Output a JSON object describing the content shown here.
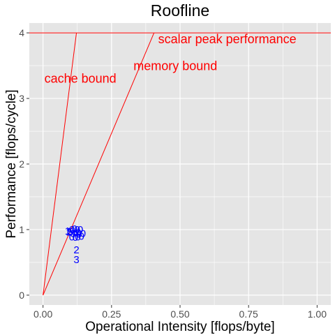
{
  "chart_data": {
    "type": "line",
    "title": "Roofline",
    "xlabel": "Operational Intensity [flops/byte]",
    "ylabel": "Performance [flops/cycle]",
    "xlim": [
      -0.05,
      1.05
    ],
    "ylim": [
      -0.15,
      4.15
    ],
    "x_ticks": [
      "0.00",
      "0.25",
      "0.50",
      "0.75",
      "1.00"
    ],
    "x_tick_values": [
      0,
      0.25,
      0.5,
      0.75,
      1.0
    ],
    "y_ticks": [
      "0",
      "1",
      "2",
      "3",
      "4"
    ],
    "y_tick_values": [
      0,
      1,
      2,
      3,
      4
    ],
    "grid": true,
    "colors": {
      "panel": "#e5e5e5",
      "grid": "#ffffff",
      "line": "#ff0000",
      "points": "#0000ff"
    },
    "series": [
      {
        "name": "scalar peak performance",
        "x": [
          -0.05,
          1.05
        ],
        "y": [
          4,
          4
        ]
      },
      {
        "name": "memory bound",
        "x": [
          0,
          0.405
        ],
        "y": [
          0,
          4
        ]
      },
      {
        "name": "cache bound",
        "x": [
          0,
          0.122
        ],
        "y": [
          0,
          4
        ]
      }
    ],
    "annotations": [
      {
        "text": "scalar peak performance",
        "x": 0.42,
        "y": 3.84
      },
      {
        "text": "memory bound",
        "x": 0.33,
        "y": 3.43
      },
      {
        "text": "cache bound",
        "x": 0.005,
        "y": 3.24
      }
    ],
    "points": [
      {
        "label": "1",
        "x": 0.09,
        "y": 0.98
      },
      {
        "label": "2",
        "x": 0.095,
        "y": 0.96
      },
      {
        "label": "5",
        "x": 0.1,
        "y": 0.97
      },
      {
        "label": "0",
        "x": 0.105,
        "y": 1.0
      },
      {
        "label": "0",
        "x": 0.105,
        "y": 0.89
      },
      {
        "label": "8",
        "x": 0.11,
        "y": 0.94
      },
      {
        "label": "0",
        "x": 0.115,
        "y": 1.01
      },
      {
        "label": "0",
        "x": 0.118,
        "y": 0.88
      },
      {
        "label": "6",
        "x": 0.12,
        "y": 0.95
      },
      {
        "label": "0",
        "x": 0.125,
        "y": 1.0
      },
      {
        "label": "0",
        "x": 0.127,
        "y": 0.89
      },
      {
        "label": "0",
        "x": 0.13,
        "y": 0.95
      },
      {
        "label": "9",
        "x": 0.132,
        "y": 0.93
      },
      {
        "label": "0",
        "x": 0.136,
        "y": 1.0
      },
      {
        "label": "0",
        "x": 0.14,
        "y": 0.9
      },
      {
        "label": "0",
        "x": 0.146,
        "y": 0.94
      },
      {
        "label": "2",
        "x": 0.122,
        "y": 0.69
      },
      {
        "label": "3",
        "x": 0.122,
        "y": 0.54
      }
    ]
  }
}
